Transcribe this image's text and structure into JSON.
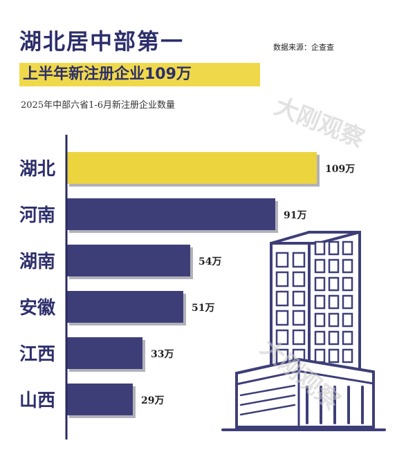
{
  "header": {
    "title": "湖北居中部第一",
    "source": "数据来源：企查查",
    "highlight": "上半年新注册企业109万",
    "subtitle": "2025年中部六省1-6月新注册企业数量"
  },
  "watermarks": [
    "大刚观察",
    "大刚观察"
  ],
  "colors": {
    "highlight_bar": "#ecd43e",
    "bar": "#3d3e78",
    "axis": "#2a2b62",
    "label": "#2d2e6b",
    "building": "#3d3e78"
  },
  "chart_data": {
    "type": "bar",
    "orientation": "horizontal",
    "title": "2025年中部六省1-6月新注册企业数量",
    "categories": [
      "湖北",
      "河南",
      "湖南",
      "安徽",
      "江西",
      "山西"
    ],
    "values": [
      109,
      91,
      54,
      51,
      33,
      29
    ],
    "value_labels": [
      "109万",
      "91万",
      "54万",
      "51万",
      "33万",
      "29万"
    ],
    "unit": "万",
    "highlight_index": 0,
    "xlim": [
      0,
      109
    ]
  }
}
